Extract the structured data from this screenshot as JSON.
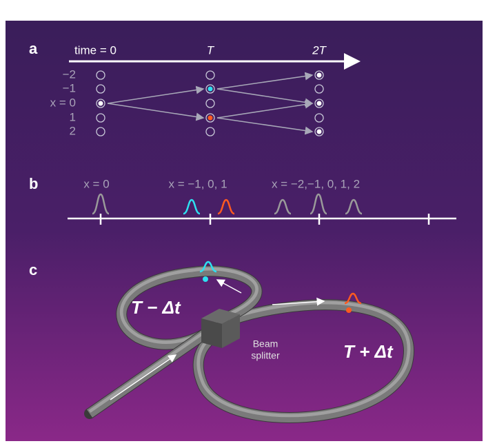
{
  "panels": [
    {
      "label": "a",
      "time_labels": [
        "time = 0",
        "T",
        "2T"
      ],
      "position_labels": [
        "−2",
        "−1",
        "x = 0",
        "1",
        "2"
      ]
    },
    {
      "label": "b",
      "pulse_labels": [
        "x = 0",
        "x = −1, 0, 1",
        "x = −2,−1, 0, 1, 2"
      ]
    },
    {
      "label": "c",
      "delay_labels": [
        "T − Δt",
        "T + Δt"
      ],
      "beam_splitter": [
        "Beam",
        "splitter"
      ]
    }
  ]
}
